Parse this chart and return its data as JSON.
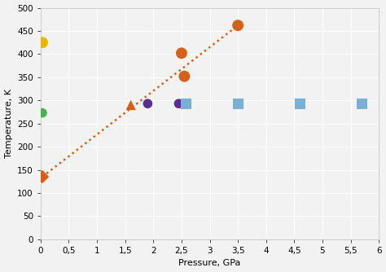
{
  "title": "",
  "xlabel": "Pressure, GPa",
  "ylabel": "Temperature, K",
  "xlim": [
    0,
    6
  ],
  "ylim": [
    0,
    500
  ],
  "xticks": [
    0,
    0.5,
    1,
    1.5,
    2,
    2.5,
    3,
    3.5,
    4,
    4.5,
    5,
    5.5,
    6
  ],
  "yticks": [
    0,
    50,
    100,
    150,
    200,
    250,
    300,
    350,
    400,
    450,
    500
  ],
  "orange_circles": [
    [
      2.5,
      402
    ],
    [
      2.55,
      352
    ],
    [
      3.5,
      462
    ]
  ],
  "yellow_circle": [
    [
      0.03,
      425
    ]
  ],
  "green_circle": [
    [
      0.03,
      273
    ]
  ],
  "orange_triangle": [
    [
      1.6,
      290
    ]
  ],
  "orange_diamond": [
    [
      0.03,
      135
    ]
  ],
  "purple_circles": [
    [
      1.9,
      293
    ],
    [
      2.45,
      293
    ]
  ],
  "blue_squares": [
    [
      2.58,
      293
    ],
    [
      3.5,
      293
    ],
    [
      4.6,
      293
    ],
    [
      5.7,
      293
    ]
  ],
  "trendline_x": [
    0.03,
    3.5
  ],
  "trendline_y": [
    135,
    462
  ],
  "trendline_color": "#d4601a",
  "orange_color": "#d4601a",
  "yellow_color": "#e8b800",
  "green_color": "#4caf50",
  "purple_color": "#5b2d8e",
  "blue_color": "#7bafd4",
  "marker_size_circle_large": 100,
  "marker_size_circle_small": 70,
  "marker_size_square": 90,
  "marker_size_triangle": 80,
  "marker_size_diamond": 70,
  "bg_color": "#f2f2f2",
  "grid_color": "#ffffff",
  "fig_width": 4.74,
  "fig_height": 3.34,
  "dpi": 100
}
